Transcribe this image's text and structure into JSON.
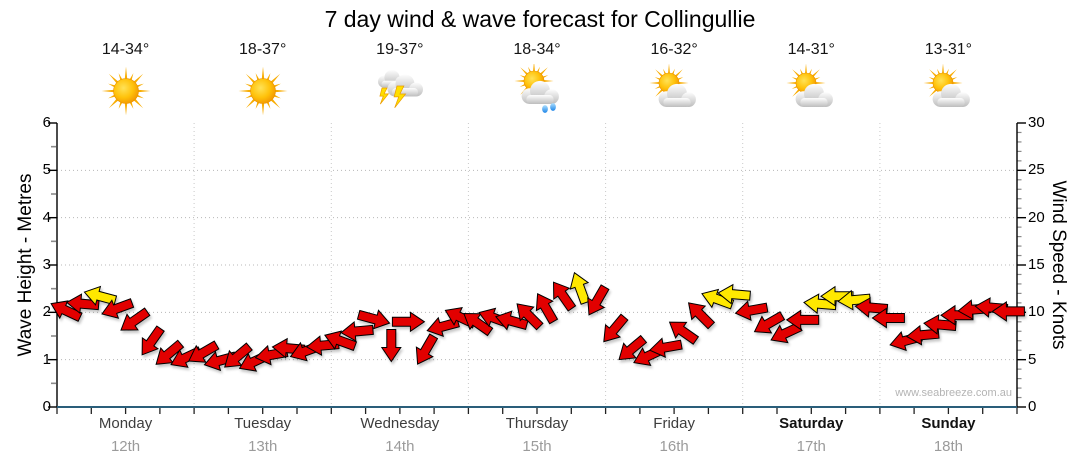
{
  "title": "7 day wind & wave forecast for Collingullie",
  "watermark": "www.seabreeze.com.au",
  "axes": {
    "left": {
      "title": "Wave Height - Metres",
      "ticks": [
        "0",
        "1",
        "2",
        "3",
        "4",
        "5",
        "6"
      ]
    },
    "right": {
      "title": "Wind Speed - Knots",
      "ticks": [
        "0",
        "5",
        "10",
        "15",
        "20",
        "25",
        "30"
      ]
    }
  },
  "days": [
    {
      "name": "Monday",
      "date": "12th",
      "temp": "14-34°",
      "icon": "sunny",
      "weekend": false
    },
    {
      "name": "Tuesday",
      "date": "13th",
      "temp": "18-37°",
      "icon": "sunny",
      "weekend": false
    },
    {
      "name": "Wednesday",
      "date": "14th",
      "temp": "19-37°",
      "icon": "storm",
      "weekend": false
    },
    {
      "name": "Thursday",
      "date": "15th",
      "temp": "18-34°",
      "icon": "rain",
      "weekend": false
    },
    {
      "name": "Friday",
      "date": "16th",
      "temp": "16-32°",
      "icon": "partly",
      "weekend": false
    },
    {
      "name": "Saturday",
      "date": "17th",
      "temp": "14-31°",
      "icon": "partly",
      "weekend": true
    },
    {
      "name": "Sunday",
      "date": "18th",
      "temp": "13-31°",
      "icon": "partly",
      "weekend": true
    }
  ],
  "chart_data": {
    "type": "scatter",
    "title": "7 day wind & wave forecast for Collingullie",
    "x_categories": [
      "Monday 12th",
      "Tuesday 13th",
      "Wednesday 14th",
      "Thursday 15th",
      "Friday 16th",
      "Saturday 17th",
      "Sunday 18th"
    ],
    "ylabel_left": "Wave Height - Metres",
    "ylim_left": [
      0,
      6
    ],
    "ylabel_right": "Wind Speed - Knots",
    "ylim_right": [
      0,
      30
    ],
    "grid": true,
    "legend": "none",
    "marker": "wind-direction-arrow",
    "arrows_per_day": 8,
    "arrow_colors": {
      "red": "#e20400",
      "yellow": "#ffe800",
      "outline": "#000000"
    },
    "arrows": [
      {
        "knots": 10.2,
        "dir": 205,
        "color": "red"
      },
      {
        "knots": 10.9,
        "dir": 185,
        "color": "red"
      },
      {
        "knots": 11.7,
        "dir": 195,
        "color": "yellow"
      },
      {
        "knots": 10.4,
        "dir": 160,
        "color": "red"
      },
      {
        "knots": 9.1,
        "dir": 145,
        "color": "red"
      },
      {
        "knots": 6.9,
        "dir": 125,
        "color": "red"
      },
      {
        "knots": 5.6,
        "dir": 140,
        "color": "red"
      },
      {
        "knots": 5.2,
        "dir": 155,
        "color": "red"
      },
      {
        "knots": 5.7,
        "dir": 150,
        "color": "red"
      },
      {
        "knots": 4.9,
        "dir": 165,
        "color": "red"
      },
      {
        "knots": 5.3,
        "dir": 140,
        "color": "red"
      },
      {
        "knots": 4.8,
        "dir": 155,
        "color": "red"
      },
      {
        "knots": 5.5,
        "dir": 170,
        "color": "red"
      },
      {
        "knots": 6.2,
        "dir": 185,
        "color": "red"
      },
      {
        "knots": 5.9,
        "dir": 160,
        "color": "red"
      },
      {
        "knots": 6.5,
        "dir": 175,
        "color": "red"
      },
      {
        "knots": 7.0,
        "dir": 200,
        "color": "red"
      },
      {
        "knots": 8.0,
        "dir": 175,
        "color": "red"
      },
      {
        "knots": 9.3,
        "dir": 15,
        "color": "red"
      },
      {
        "knots": 6.5,
        "dir": 90,
        "color": "red"
      },
      {
        "knots": 9.0,
        "dir": 0,
        "color": "red"
      },
      {
        "knots": 6.0,
        "dir": 120,
        "color": "red"
      },
      {
        "knots": 8.5,
        "dir": 165,
        "color": "red"
      },
      {
        "knots": 9.5,
        "dir": 205,
        "color": "red"
      },
      {
        "knots": 8.9,
        "dir": 215,
        "color": "red"
      },
      {
        "knots": 9.4,
        "dir": 200,
        "color": "red"
      },
      {
        "knots": 9.1,
        "dir": 195,
        "color": "red"
      },
      {
        "knots": 9.7,
        "dir": 225,
        "color": "red"
      },
      {
        "knots": 10.5,
        "dir": 240,
        "color": "red"
      },
      {
        "knots": 11.8,
        "dir": 235,
        "color": "red"
      },
      {
        "knots": 12.6,
        "dir": 250,
        "color": "yellow"
      },
      {
        "knots": 11.2,
        "dir": 120,
        "color": "red"
      },
      {
        "knots": 8.2,
        "dir": 130,
        "color": "red"
      },
      {
        "knots": 6.1,
        "dir": 140,
        "color": "red"
      },
      {
        "knots": 5.4,
        "dir": 155,
        "color": "red"
      },
      {
        "knots": 6.3,
        "dir": 170,
        "color": "red"
      },
      {
        "knots": 8.0,
        "dir": 215,
        "color": "red"
      },
      {
        "knots": 9.8,
        "dir": 225,
        "color": "red"
      },
      {
        "knots": 11.4,
        "dir": 200,
        "color": "yellow"
      },
      {
        "knots": 11.9,
        "dir": 185,
        "color": "yellow"
      },
      {
        "knots": 10.2,
        "dir": 170,
        "color": "red"
      },
      {
        "knots": 8.8,
        "dir": 150,
        "color": "red"
      },
      {
        "knots": 7.8,
        "dir": 155,
        "color": "red"
      },
      {
        "knots": 9.2,
        "dir": 180,
        "color": "red"
      },
      {
        "knots": 10.9,
        "dir": 185,
        "color": "yellow"
      },
      {
        "knots": 11.7,
        "dir": 180,
        "color": "yellow"
      },
      {
        "knots": 11.3,
        "dir": 175,
        "color": "yellow"
      },
      {
        "knots": 10.5,
        "dir": 185,
        "color": "red"
      },
      {
        "knots": 9.4,
        "dir": 180,
        "color": "red"
      },
      {
        "knots": 7.0,
        "dir": 165,
        "color": "red"
      },
      {
        "knots": 7.6,
        "dir": 175,
        "color": "red"
      },
      {
        "knots": 8.7,
        "dir": 185,
        "color": "red"
      },
      {
        "knots": 9.7,
        "dir": 180,
        "color": "red"
      },
      {
        "knots": 10.3,
        "dir": 175,
        "color": "red"
      },
      {
        "knots": 10.5,
        "dir": 185,
        "color": "red"
      },
      {
        "knots": 10.1,
        "dir": 180,
        "color": "red"
      }
    ]
  }
}
